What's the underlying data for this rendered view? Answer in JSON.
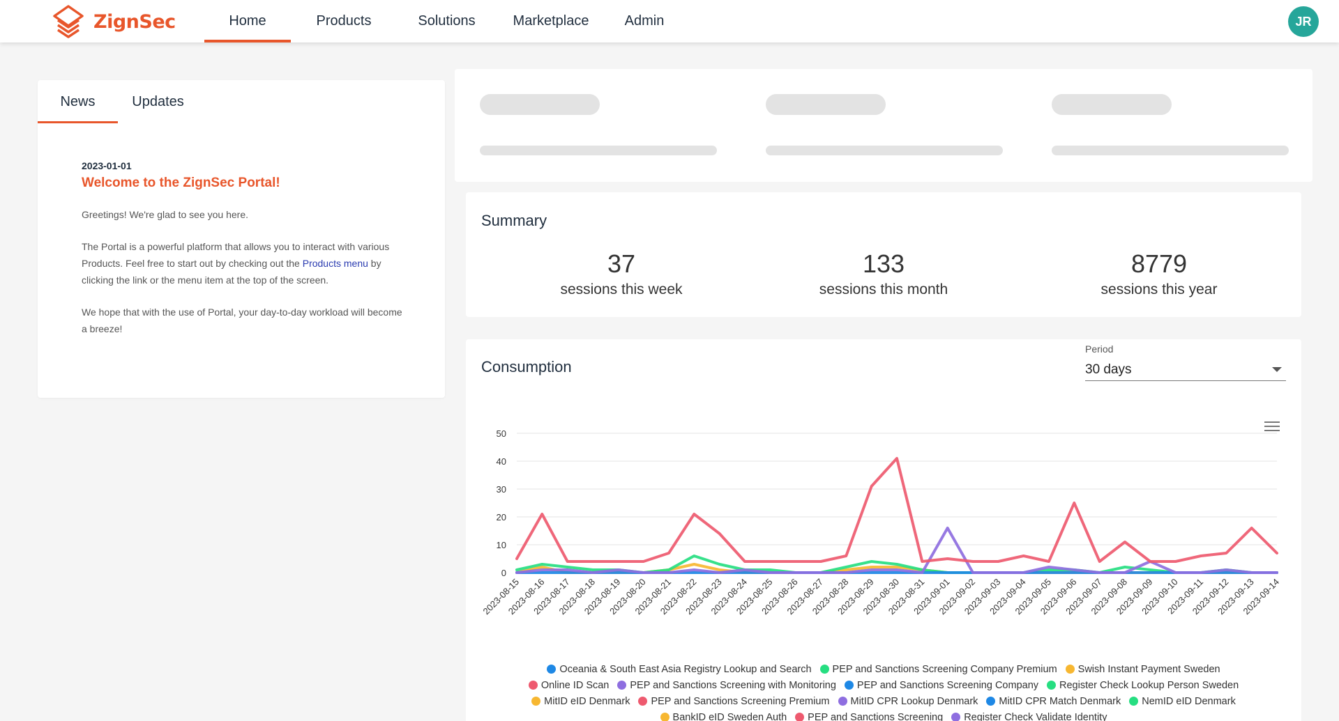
{
  "app": {
    "logo_text": "ZignSec",
    "avatar_initials": "JR",
    "brand_color": "#e8562b"
  },
  "nav": {
    "items": [
      "Home",
      "Products",
      "Solutions",
      "Marketplace",
      "Admin"
    ],
    "active": "Home"
  },
  "news": {
    "tabs": [
      "News",
      "Updates"
    ],
    "active_tab": "News",
    "date": "2023-01-01",
    "title": "Welcome to the ZignSec Portal!",
    "p1": "Greetings! We're glad to see you here.",
    "p2_before": "The Portal is a powerful platform that allows you to interact with various Products. Feel free to start out by checking out the ",
    "p2_link": "Products menu",
    "p2_after": " by clicking the link or the menu item at the top of the screen.",
    "p3": "We hope that with the use of Portal, your day-to-day workload will become a breeze!"
  },
  "summary": {
    "title": "Summary",
    "stats": [
      {
        "value": "37",
        "label": "sessions this week"
      },
      {
        "value": "133",
        "label": "sessions this month"
      },
      {
        "value": "8779",
        "label": "sessions this year"
      }
    ]
  },
  "consumption": {
    "title": "Consumption",
    "period_label": "Period",
    "period_value": "30 days"
  },
  "legend": [
    {
      "name": "Oceania & South East Asia Registry Lookup and Search",
      "color": "#1e88e5"
    },
    {
      "name": "PEP and Sanctions Screening Company Premium",
      "color": "#26de81"
    },
    {
      "name": "Swish Instant Payment Sweden",
      "color": "#f7b731"
    },
    {
      "name": "Online ID Scan",
      "color": "#ee5a6f"
    },
    {
      "name": "PEP and Sanctions Screening with Monitoring",
      "color": "#8e6ee0"
    },
    {
      "name": "PEP and Sanctions Screening Company",
      "color": "#1e88e5"
    },
    {
      "name": "Register Check Lookup Person Sweden",
      "color": "#26de81"
    },
    {
      "name": "MitID eID Denmark",
      "color": "#f7b731"
    },
    {
      "name": "PEP and Sanctions Screening Premium",
      "color": "#ee5a6f"
    },
    {
      "name": "MitID CPR Lookup Denmark",
      "color": "#8e6ee0"
    },
    {
      "name": "MitID CPR Match Denmark",
      "color": "#1e88e5"
    },
    {
      "name": "NemID eID Denmark",
      "color": "#26de81"
    },
    {
      "name": "BankID eID Sweden Auth",
      "color": "#f7b731"
    },
    {
      "name": "PEP and Sanctions Screening",
      "color": "#ee5a6f"
    },
    {
      "name": "Register Check Validate Identity",
      "color": "#8e6ee0"
    }
  ],
  "chart_data": {
    "type": "line",
    "ylim": [
      0,
      50
    ],
    "yticks": [
      0,
      10,
      20,
      30,
      40,
      50
    ],
    "categories": [
      "2023-08-15",
      "2023-08-16",
      "2023-08-17",
      "2023-08-18",
      "2023-08-19",
      "2023-08-20",
      "2023-08-21",
      "2023-08-22",
      "2023-08-23",
      "2023-08-24",
      "2023-08-25",
      "2023-08-26",
      "2023-08-27",
      "2023-08-28",
      "2023-08-29",
      "2023-08-30",
      "2023-08-31",
      "2023-09-01",
      "2023-09-02",
      "2023-09-03",
      "2023-09-04",
      "2023-09-05",
      "2023-09-06",
      "2023-09-07",
      "2023-09-08",
      "2023-09-09",
      "2023-09-10",
      "2023-09-11",
      "2023-09-12",
      "2023-09-13",
      "2023-09-14"
    ],
    "series": [
      {
        "name": "Swish Instant Payment Sweden",
        "color": "#f7b731",
        "values": [
          0,
          2,
          0,
          0,
          0,
          0,
          1,
          3,
          1,
          0,
          0,
          0,
          0,
          1,
          2,
          2,
          1,
          0,
          0,
          0,
          0,
          0,
          0,
          0,
          0,
          0,
          0,
          0,
          0,
          0,
          0
        ]
      },
      {
        "name": "PEP and Sanctions Screening Company Premium",
        "color": "#26de81",
        "values": [
          1,
          3,
          2,
          1,
          1,
          0,
          1,
          6,
          3,
          1,
          1,
          0,
          0,
          2,
          4,
          3,
          1,
          0,
          0,
          0,
          0,
          1,
          1,
          0,
          2,
          1,
          0,
          0,
          1,
          0,
          0
        ]
      },
      {
        "name": "Oceania & South East Asia Registry Lookup and Search",
        "color": "#1e88e5",
        "values": [
          0,
          0,
          0,
          0,
          0,
          0,
          0,
          0,
          0,
          0,
          0,
          0,
          0,
          0,
          0,
          0,
          0,
          0,
          0,
          0,
          0,
          0,
          0,
          0,
          0,
          0,
          0,
          0,
          0,
          0,
          0
        ]
      },
      {
        "name": "PEP and Sanctions Screening with Monitoring",
        "color": "#8e6ee0",
        "values": [
          0,
          1,
          1,
          0,
          1,
          0,
          0,
          1,
          0,
          1,
          0,
          0,
          0,
          0,
          1,
          1,
          0,
          16,
          0,
          0,
          0,
          2,
          1,
          0,
          0,
          4,
          0,
          0,
          1,
          0,
          0
        ]
      },
      {
        "name": "Online ID Scan",
        "color": "#ee5a6f",
        "values": [
          5,
          21,
          4,
          4,
          4,
          4,
          7,
          21,
          14,
          4,
          4,
          4,
          4,
          6,
          31,
          41,
          4,
          5,
          4,
          4,
          6,
          4,
          25,
          4,
          11,
          4,
          4,
          6,
          7,
          16,
          7
        ]
      }
    ]
  }
}
